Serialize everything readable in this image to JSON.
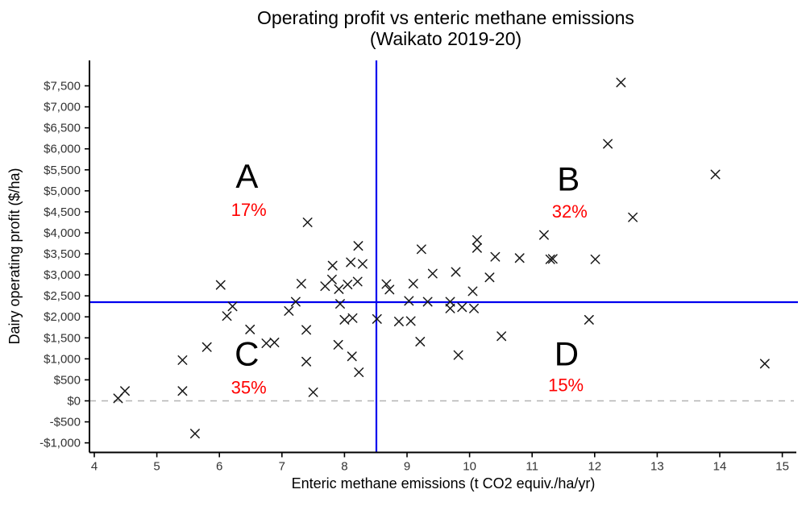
{
  "chart_data": {
    "type": "scatter",
    "title": "Operating profit vs enteric methane emissions",
    "subtitle": "(Waikato 2019-20)",
    "xlabel": "Enteric methane emissions (t CO2 equiv./ha/yr)",
    "ylabel": "Dairy operating profit ($/ha)",
    "xlim": [
      3.9,
      15.25
    ],
    "ylim": [
      -1250,
      7800
    ],
    "grid": "off",
    "legend": "none",
    "x_ticks": [
      "4",
      "5",
      "6",
      "7",
      "8",
      "9",
      "10",
      "11",
      "12",
      "13",
      "14",
      "15"
    ],
    "x_tick_values": [
      4,
      5,
      6,
      7,
      8,
      9,
      10,
      11,
      12,
      13,
      14,
      15
    ],
    "y_ticks": [
      {
        "value": 7500,
        "label": "$7,500"
      },
      {
        "value": 7000,
        "label": "$7,000"
      },
      {
        "value": 6500,
        "label": "$6,500"
      },
      {
        "value": 6000,
        "label": "$6,000"
      },
      {
        "value": 5500,
        "label": "$5,500"
      },
      {
        "value": 5000,
        "label": "$5,000"
      },
      {
        "value": 4500,
        "label": "$4,500"
      },
      {
        "value": 4000,
        "label": "$4,000"
      },
      {
        "value": 3500,
        "label": "$3,500"
      },
      {
        "value": 3000,
        "label": "$3,000"
      },
      {
        "value": 2500,
        "label": "$2,500"
      },
      {
        "value": 2000,
        "label": "$2,000"
      },
      {
        "value": 1500,
        "label": "$1,500"
      },
      {
        "value": 1000,
        "label": "$1,000"
      },
      {
        "value": 500,
        "label": "$500"
      },
      {
        "value": 0,
        "label": "$0"
      },
      {
        "value": -500,
        "label": "-$500"
      },
      {
        "value": -1000,
        "label": "-$1,000"
      }
    ],
    "reference_lines": {
      "vline_x": 8.51,
      "hline_y": 2350,
      "zero_line_y": 0,
      "line_color": "#0000EE",
      "zero_line_color": "#B3B3B3"
    },
    "quadrants": [
      {
        "label": "A",
        "pct": "17%",
        "label_x": 6.44,
        "label_y": 5360,
        "pct_x": 6.47,
        "pct_y": 4560
      },
      {
        "label": "B",
        "pct": "32%",
        "label_x": 11.58,
        "label_y": 5290,
        "pct_x": 11.6,
        "pct_y": 4520
      },
      {
        "label": "C",
        "pct": "35%",
        "label_x": 6.44,
        "label_y": 1130,
        "pct_x": 6.47,
        "pct_y": 330
      },
      {
        "label": "D",
        "pct": "15%",
        "label_x": 11.55,
        "label_y": 1130,
        "pct_x": 11.54,
        "pct_y": 380
      }
    ],
    "annotation_color": "#FF0000",
    "quadrant_label_color": "#000000",
    "marker": {
      "shape": "x",
      "color": "#1A1A1A"
    },
    "points": [
      [
        7.41,
        4250
      ],
      [
        6.02,
        2760
      ],
      [
        7.31,
        2790
      ],
      [
        7.69,
        2730
      ],
      [
        7.8,
        2890
      ],
      [
        7.91,
        2660
      ],
      [
        8.05,
        2770
      ],
      [
        7.81,
        3220
      ],
      [
        8.1,
        3300
      ],
      [
        8.29,
        3260
      ],
      [
        8.22,
        3690
      ],
      [
        8.21,
        2840
      ],
      [
        12.42,
        7580
      ],
      [
        12.21,
        6120
      ],
      [
        13.93,
        5390
      ],
      [
        12.61,
        4370
      ],
      [
        12.01,
        3370
      ],
      [
        11.19,
        3950
      ],
      [
        11.29,
        3370
      ],
      [
        11.33,
        3380
      ],
      [
        10.12,
        3830
      ],
      [
        10.12,
        3640
      ],
      [
        10.41,
        3430
      ],
      [
        10.8,
        3400
      ],
      [
        9.23,
        3610
      ],
      [
        9.41,
        3030
      ],
      [
        9.78,
        3070
      ],
      [
        10.32,
        2940
      ],
      [
        10.05,
        2610
      ],
      [
        8.67,
        2780
      ],
      [
        8.72,
        2650
      ],
      [
        9.1,
        2790
      ],
      [
        9.03,
        2380
      ],
      [
        9.33,
        2360
      ],
      [
        9.69,
        2360
      ],
      [
        8.52,
        1950
      ],
      [
        8.87,
        1890
      ],
      [
        9.06,
        1900
      ],
      [
        9.69,
        2200
      ],
      [
        9.88,
        2230
      ],
      [
        10.07,
        2200
      ],
      [
        9.21,
        1410
      ],
      [
        9.82,
        1090
      ],
      [
        10.51,
        1540
      ],
      [
        11.91,
        1930
      ],
      [
        14.72,
        885
      ],
      [
        7.22,
        2360
      ],
      [
        6.21,
        2250
      ],
      [
        6.12,
        2020
      ],
      [
        7.11,
        2140
      ],
      [
        7.93,
        2310
      ],
      [
        8.0,
        1930
      ],
      [
        8.13,
        1970
      ],
      [
        6.49,
        1700
      ],
      [
        7.39,
        1690
      ],
      [
        5.8,
        1280
      ],
      [
        6.75,
        1370
      ],
      [
        6.88,
        1390
      ],
      [
        5.41,
        970
      ],
      [
        7.39,
        935
      ],
      [
        7.9,
        1335
      ],
      [
        8.12,
        1060
      ],
      [
        8.23,
        680
      ],
      [
        5.41,
        235
      ],
      [
        7.5,
        205
      ],
      [
        4.38,
        60
      ],
      [
        4.49,
        235
      ],
      [
        5.61,
        -780
      ]
    ]
  }
}
